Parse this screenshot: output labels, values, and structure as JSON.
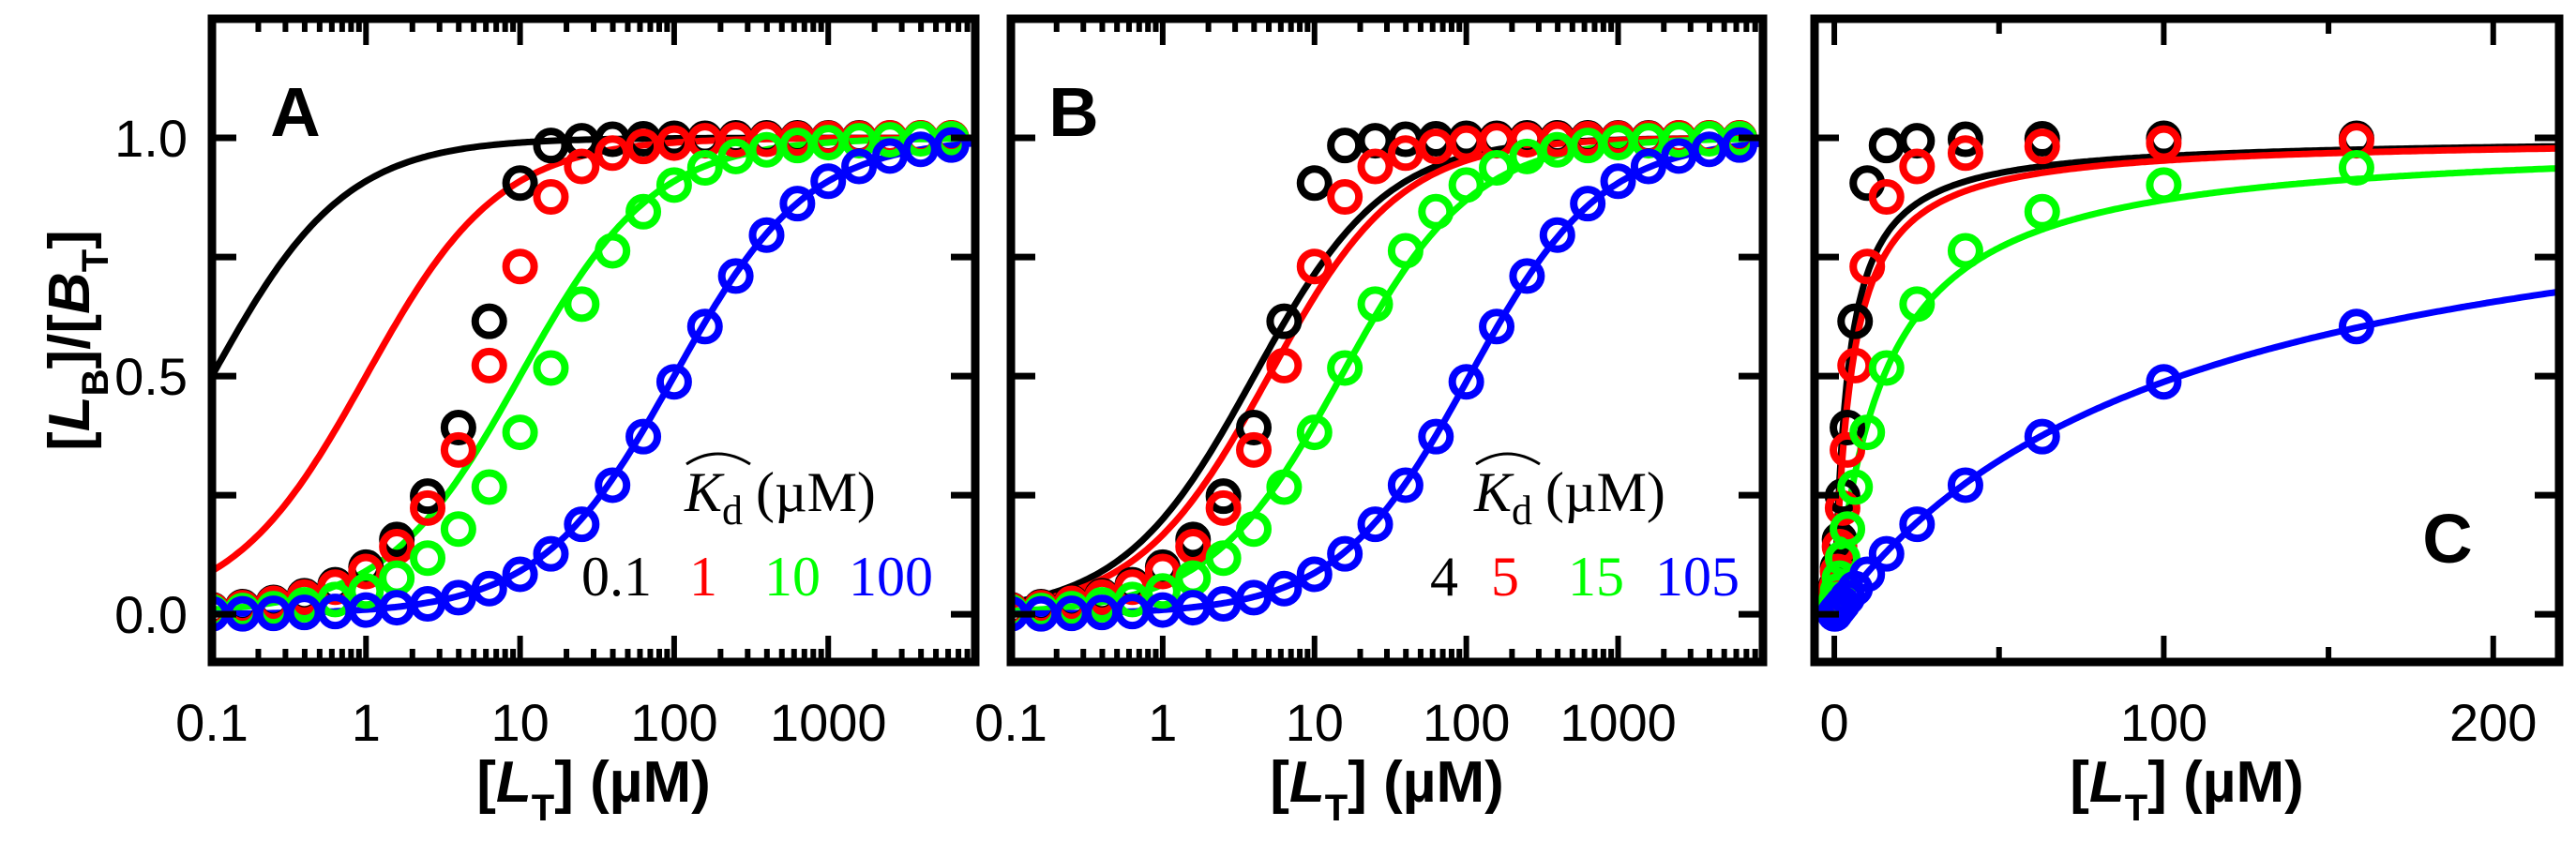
{
  "shared": {
    "x": [
      0.1,
      0.158,
      0.251,
      0.398,
      0.631,
      1,
      1.585,
      2.512,
      3.981,
      6.31,
      10,
      15.85,
      25.12,
      39.81,
      63.1,
      100,
      158.5,
      251.2,
      398.1,
      631,
      1000,
      1585,
      2512,
      3981,
      6310
    ],
    "colors": {
      "black": "#000000",
      "red": "#ff0000",
      "green": "#00ff00",
      "blue": "#0000ff"
    },
    "series": [
      {
        "name": "black",
        "color": "#000000",
        "y": [
          0.01,
          0.016,
          0.025,
          0.039,
          0.062,
          0.099,
          0.157,
          0.248,
          0.392,
          0.615,
          0.905,
          0.984,
          0.994,
          0.997,
          0.998,
          0.999,
          0.999,
          1.0,
          1.0,
          1.0,
          1.0,
          1.0,
          1.0,
          1.0,
          1.0
        ]
      },
      {
        "name": "red",
        "color": "#ff0000",
        "y": [
          0.009,
          0.014,
          0.023,
          0.036,
          0.057,
          0.09,
          0.142,
          0.223,
          0.345,
          0.522,
          0.73,
          0.876,
          0.94,
          0.968,
          0.982,
          0.989,
          0.994,
          0.996,
          0.997,
          0.998,
          0.999,
          0.999,
          1.0,
          1.0,
          1.0
        ]
      },
      {
        "name": "green",
        "color": "#00ff00",
        "y": [
          0.005,
          0.008,
          0.012,
          0.02,
          0.031,
          0.049,
          0.076,
          0.118,
          0.179,
          0.267,
          0.382,
          0.517,
          0.651,
          0.763,
          0.845,
          0.901,
          0.937,
          0.961,
          0.975,
          0.984,
          0.99,
          0.994,
          0.996,
          0.998,
          0.998
        ]
      },
      {
        "name": "blue",
        "color": "#0000ff",
        "y": [
          0.001,
          0.001,
          0.002,
          0.004,
          0.006,
          0.009,
          0.014,
          0.022,
          0.035,
          0.054,
          0.084,
          0.127,
          0.189,
          0.271,
          0.373,
          0.488,
          0.604,
          0.71,
          0.796,
          0.862,
          0.909,
          0.94,
          0.962,
          0.976,
          0.985
        ]
      }
    ]
  },
  "chart_data": [
    {
      "panel": "A",
      "type": "scatter+line",
      "xscale": "log",
      "xlim": [
        0.1,
        9000
      ],
      "ylim": [
        -0.1,
        1.25
      ],
      "xticks": [
        "0.1",
        "1",
        "10",
        "100",
        "1000"
      ],
      "yticks": [
        "0.0",
        "0.5",
        "1.0"
      ],
      "ylabel": [
        "[",
        "L",
        "B",
        "]/[",
        "B",
        "T",
        "]"
      ],
      "xlabel": {
        "open": "[",
        "var": "L",
        "sub": "T",
        "unit": "] (µM)"
      },
      "legend": {
        "title_var": "K",
        "title_sub": "d",
        "title_unit": "(µM)",
        "entries": [
          {
            "label": "0.1",
            "color": "#000000"
          },
          {
            "label": "1",
            "color": "#ff0000"
          },
          {
            "label": "10",
            "color": "#00ff00"
          },
          {
            "label": "100",
            "color": "#0000ff"
          }
        ]
      },
      "fit_kd": [
        0.1,
        1,
        10,
        100
      ]
    },
    {
      "panel": "B",
      "type": "scatter+line",
      "xscale": "log",
      "xlim": [
        0.1,
        9000
      ],
      "ylim": [
        -0.1,
        1.25
      ],
      "xticks": [
        "0.1",
        "1",
        "10",
        "100",
        "1000"
      ],
      "xlabel": {
        "open": "[",
        "var": "L",
        "sub": "T",
        "unit": "] (µM)"
      },
      "legend": {
        "title_var": "K",
        "title_sub": "d",
        "title_unit": "(µM)",
        "entries": [
          {
            "label": "4",
            "color": "#000000"
          },
          {
            "label": "5",
            "color": "#ff0000"
          },
          {
            "label": "15",
            "color": "#00ff00"
          },
          {
            "label": "105",
            "color": "#0000ff"
          }
        ]
      },
      "fit_kd": [
        4,
        5,
        15,
        105
      ]
    },
    {
      "panel": "C",
      "type": "scatter+line",
      "xscale": "linear",
      "xlim": [
        -6,
        220
      ],
      "ylim": [
        -0.1,
        1.25
      ],
      "xticks": [
        "0",
        "100",
        "200"
      ],
      "xlabel": {
        "open": "[",
        "var": "L",
        "sub": "T",
        "unit": "] (µM)"
      },
      "fit_kd": [
        4,
        5,
        15,
        105
      ]
    }
  ]
}
